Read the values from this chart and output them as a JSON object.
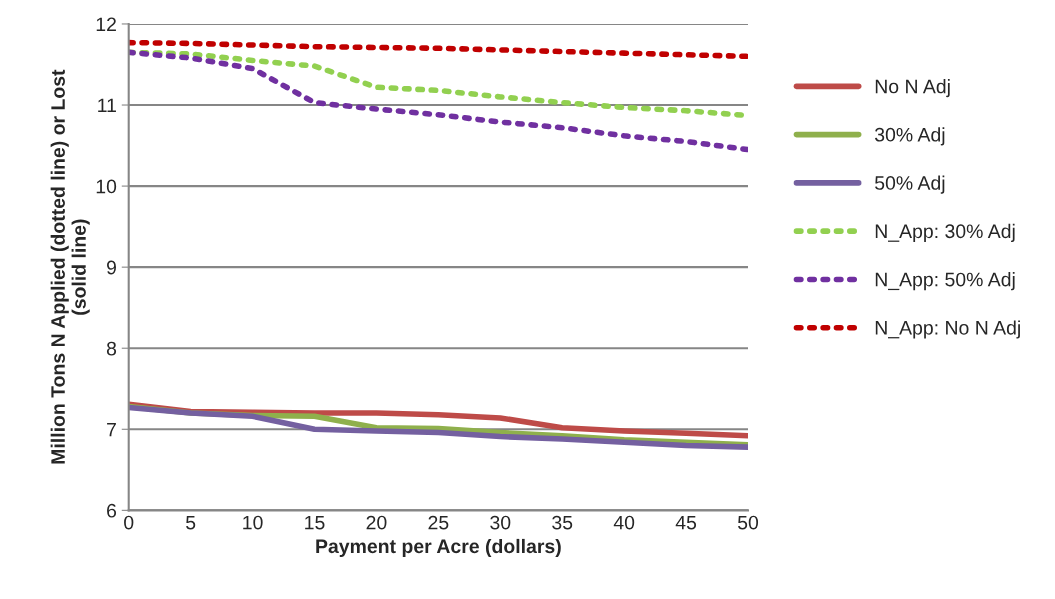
{
  "chart_data": {
    "type": "line",
    "xlabel": "Payment per Acre (dollars)",
    "ylabel": "Million Tons N Applied (dotted line) or Lost\n(solid line)",
    "x": [
      0,
      5,
      10,
      15,
      20,
      25,
      30,
      35,
      40,
      45,
      50
    ],
    "xlim": [
      0,
      50
    ],
    "xticks": [
      0,
      5,
      10,
      15,
      20,
      25,
      30,
      35,
      40,
      45,
      50
    ],
    "ylim": [
      6,
      12
    ],
    "yticks": [
      6,
      7,
      8,
      9,
      10,
      11,
      12
    ],
    "grid": "y",
    "legend": "right",
    "marker": "none",
    "series": [
      {
        "name": "No N Adj",
        "color": "#be4b48",
        "line_style": "solid",
        "values": [
          7.31,
          7.22,
          7.21,
          7.2,
          7.2,
          7.18,
          7.14,
          7.02,
          6.98,
          6.95,
          6.92
        ]
      },
      {
        "name": "30% Adj",
        "color": "#8fb04c",
        "line_style": "solid",
        "values": [
          7.28,
          7.2,
          7.17,
          7.16,
          7.02,
          7.01,
          6.96,
          6.92,
          6.87,
          6.84,
          6.81
        ]
      },
      {
        "name": "50% Adj",
        "color": "#7460a0",
        "line_style": "solid",
        "values": [
          7.27,
          7.2,
          7.16,
          7.0,
          6.98,
          6.96,
          6.91,
          6.88,
          6.84,
          6.8,
          6.78
        ]
      },
      {
        "name": "N_App: 30% Adj",
        "color": "#92d050",
        "line_style": "dotted",
        "values": [
          11.65,
          11.63,
          11.55,
          11.48,
          11.22,
          11.18,
          11.1,
          11.03,
          10.97,
          10.93,
          10.87
        ]
      },
      {
        "name": "N_App: 50% Adj",
        "color": "#7030a0",
        "line_style": "dotted",
        "values": [
          11.65,
          11.58,
          11.45,
          11.03,
          10.95,
          10.88,
          10.79,
          10.72,
          10.62,
          10.55,
          10.45
        ]
      },
      {
        "name": "N_App: No N Adj",
        "color": "#c00000",
        "line_style": "dotted",
        "values": [
          11.77,
          11.76,
          11.74,
          11.72,
          11.71,
          11.7,
          11.68,
          11.66,
          11.64,
          11.62,
          11.6
        ]
      }
    ]
  }
}
